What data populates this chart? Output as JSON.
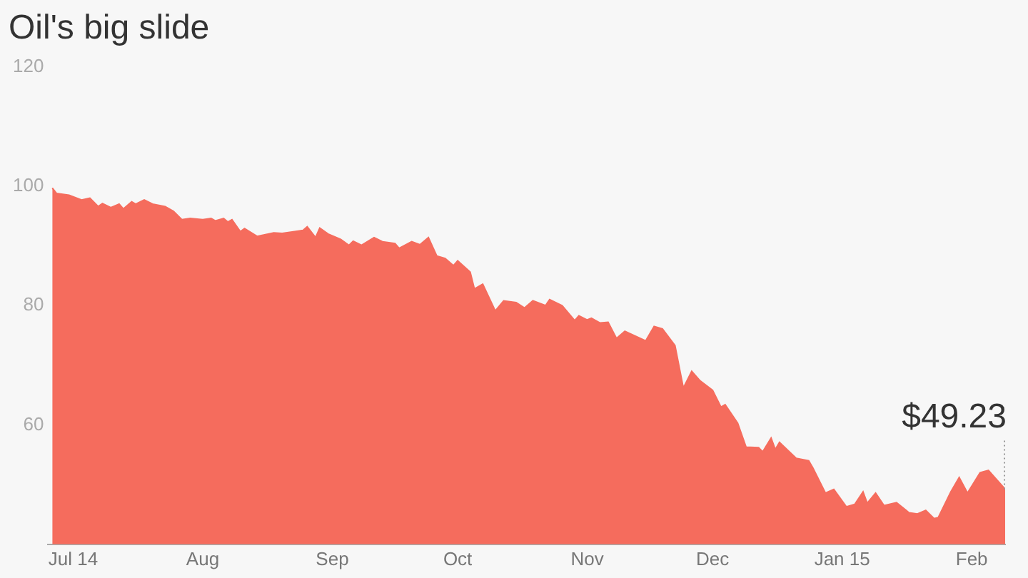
{
  "chart_data": {
    "type": "area",
    "title": "Oil's big slide",
    "x": [
      "2014-06-26",
      "2014-06-27",
      "2014-06-30",
      "2014-07-03",
      "2014-07-05",
      "2014-07-07",
      "2014-07-08",
      "2014-07-10",
      "2014-07-12",
      "2014-07-13",
      "2014-07-15",
      "2014-07-16",
      "2014-07-18",
      "2014-07-20",
      "2014-07-23",
      "2014-07-25",
      "2014-07-27",
      "2014-07-29",
      "2014-08-01",
      "2014-08-03",
      "2014-08-04",
      "2014-08-06",
      "2014-08-07",
      "2014-08-08",
      "2014-08-10",
      "2014-08-11",
      "2014-08-14",
      "2014-08-18",
      "2014-08-20",
      "2014-08-23",
      "2014-08-25",
      "2014-08-26",
      "2014-08-28",
      "2014-08-29",
      "2014-08-31",
      "2014-09-03",
      "2014-09-05",
      "2014-09-06",
      "2014-09-08",
      "2014-09-11",
      "2014-09-13",
      "2014-09-16",
      "2014-09-17",
      "2014-09-20",
      "2014-09-22",
      "2014-09-24",
      "2014-09-26",
      "2014-09-28",
      "2014-09-30",
      "2014-10-01",
      "2014-10-04",
      "2014-10-05",
      "2014-10-07",
      "2014-10-10",
      "2014-10-12",
      "2014-10-15",
      "2014-10-17",
      "2014-10-19",
      "2014-10-22",
      "2014-10-23",
      "2014-10-26",
      "2014-10-29",
      "2014-10-30",
      "2014-11-01",
      "2014-11-02",
      "2014-11-04",
      "2014-11-06",
      "2014-11-08",
      "2014-11-10",
      "2014-11-15",
      "2014-11-17",
      "2014-11-19",
      "2014-11-22",
      "2014-11-24",
      "2014-11-26",
      "2014-11-28",
      "2014-12-01",
      "2014-12-03",
      "2014-12-04",
      "2014-12-07",
      "2014-12-09",
      "2014-12-12",
      "2014-12-13",
      "2014-12-15",
      "2014-12-16",
      "2014-12-17",
      "2014-12-21",
      "2014-12-24",
      "2014-12-25",
      "2014-12-28",
      "2014-12-30",
      "2015-01-02",
      "2015-01-04",
      "2015-01-06",
      "2015-01-07",
      "2015-01-09",
      "2015-01-11",
      "2015-01-14",
      "2015-01-17",
      "2015-01-19",
      "2015-01-21",
      "2015-01-23",
      "2015-01-24",
      "2015-01-27",
      "2015-01-29",
      "2015-01-31",
      "2015-02-03",
      "2015-02-05",
      "2015-02-09"
    ],
    "series": [
      {
        "color": "#f56c5d",
        "values": [
          99.7,
          98.8,
          98.5,
          97.7,
          98,
          96.6,
          97.1,
          96.4,
          97,
          96.2,
          97.4,
          97,
          97.7,
          97,
          96.6,
          95.8,
          94.4,
          94.6,
          94.4,
          94.6,
          94.2,
          94.6,
          94,
          94.4,
          92.4,
          92.9,
          91.6,
          92.2,
          92.1,
          92.4,
          92.6,
          93.2,
          91.4,
          93,
          92,
          91.1,
          90.1,
          90.8,
          90.1,
          91.4,
          90.7,
          90.4,
          89.6,
          90.7,
          90.2,
          91.4,
          88.3,
          87.9,
          86.7,
          87.5,
          85.6,
          82.8,
          83.6,
          79.1,
          80.8,
          80.5,
          79.6,
          80.8,
          80,
          81,
          80,
          77.5,
          78.3,
          77.6,
          77.9,
          77.1,
          77.2,
          74.5,
          75.7,
          74.1,
          76.5,
          76.1,
          73.3,
          66.2,
          69,
          67.4,
          65.8,
          63,
          63.4,
          60.3,
          56.3,
          56.2,
          55.5,
          57.8,
          55.9,
          57.1,
          54.4,
          54,
          52.8,
          48.6,
          49.2,
          46.3,
          46.7,
          48.8,
          46.9,
          48.6,
          46.5,
          47,
          45.3,
          45.1,
          45.7,
          44.3,
          44.5,
          48.8,
          51.2,
          48.6,
          52,
          52.4,
          49.23
        ]
      }
    ],
    "xlim": [
      "2014-06-25",
      "2015-02-09"
    ],
    "xticks": [
      {
        "value": "2014-07-01",
        "label": "Jul 14"
      },
      {
        "value": "2014-08-01",
        "label": "Aug"
      },
      {
        "value": "2014-09-01",
        "label": "Sep"
      },
      {
        "value": "2014-10-01",
        "label": "Oct"
      },
      {
        "value": "2014-11-01",
        "label": "Nov"
      },
      {
        "value": "2014-12-01",
        "label": "Dec"
      },
      {
        "value": "2015-01-01",
        "label": "Jan 15"
      },
      {
        "value": "2015-02-01",
        "label": "Feb"
      }
    ],
    "ylim": [
      40,
      120
    ],
    "yticks": [
      60,
      80,
      100,
      120
    ],
    "annotations": [
      {
        "text": "$49.23",
        "x": "2015-02-09",
        "y": 49.23
      }
    ]
  }
}
